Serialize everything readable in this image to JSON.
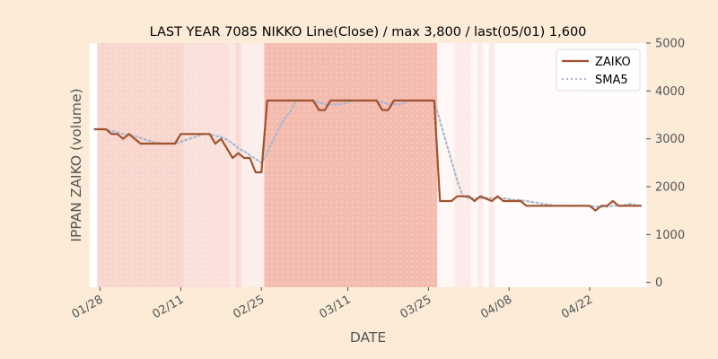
{
  "chart_data": {
    "type": "line",
    "title": "LAST YEAR 7085 NIKKO Line(Close) / max 3,800 / last(05/01) 1,600",
    "xlabel": "DATE",
    "ylabel": "IPPAN ZAIKO (volume)",
    "ylim": [
      -100,
      5000
    ],
    "y_ticks": [
      0,
      1000,
      2000,
      3000,
      4000,
      5000
    ],
    "y_axis_position": "right",
    "x_ticks": [
      "01/28",
      "02/11",
      "02/25",
      "03/11",
      "03/25",
      "04/08",
      "04/22"
    ],
    "grid": false,
    "legend_position": "top-right",
    "x": [
      "01/27",
      "01/28",
      "01/29",
      "01/30",
      "01/31",
      "02/01",
      "02/02",
      "02/03",
      "02/04",
      "02/05",
      "02/06",
      "02/07",
      "02/08",
      "02/09",
      "02/10",
      "02/11",
      "02/12",
      "02/13",
      "02/14",
      "02/15",
      "02/16",
      "02/17",
      "02/18",
      "02/19",
      "02/20",
      "02/21",
      "02/22",
      "02/23",
      "02/24",
      "02/25",
      "02/26",
      "02/27",
      "02/28",
      "02/29",
      "03/01",
      "03/02",
      "03/03",
      "03/04",
      "03/05",
      "03/06",
      "03/07",
      "03/08",
      "03/09",
      "03/10",
      "03/11",
      "03/12",
      "03/13",
      "03/14",
      "03/15",
      "03/16",
      "03/17",
      "03/18",
      "03/19",
      "03/20",
      "03/21",
      "03/22",
      "03/23",
      "03/24",
      "03/25",
      "03/26",
      "03/27",
      "03/28",
      "03/29",
      "03/30",
      "03/31",
      "04/01",
      "04/02",
      "04/03",
      "04/04",
      "04/05",
      "04/06",
      "04/07",
      "04/08",
      "04/09",
      "04/10",
      "04/11",
      "04/12",
      "04/13",
      "04/14",
      "04/15",
      "04/16",
      "04/17",
      "04/18",
      "04/19",
      "04/20",
      "04/21",
      "04/22",
      "04/23",
      "04/24",
      "04/25",
      "04/26",
      "04/27",
      "04/28",
      "04/29",
      "04/30",
      "05/01"
    ],
    "series": [
      {
        "name": "ZAIKO",
        "color": "#a0522d",
        "style": "solid",
        "values": [
          3200,
          3200,
          3200,
          3100,
          3100,
          3000,
          3100,
          3000,
          2900,
          2900,
          2900,
          2900,
          2900,
          2900,
          2900,
          3100,
          3100,
          3100,
          3100,
          3100,
          3100,
          2900,
          3000,
          2800,
          2600,
          2700,
          2600,
          2600,
          2300,
          2300,
          3800,
          3800,
          3800,
          3800,
          3800,
          3800,
          3800,
          3800,
          3800,
          3600,
          3600,
          3800,
          3800,
          3800,
          3800,
          3800,
          3800,
          3800,
          3800,
          3800,
          3600,
          3600,
          3800,
          3800,
          3800,
          3800,
          3800,
          3800,
          3800,
          3800,
          1700,
          1700,
          1700,
          1800,
          1800,
          1800,
          1700,
          1800,
          1750,
          1700,
          1800,
          1700,
          1700,
          1700,
          1700,
          1600,
          1600,
          1600,
          1600,
          1600,
          1600,
          1600,
          1600,
          1600,
          1600,
          1600,
          1600,
          1500,
          1600,
          1600,
          1700,
          1600,
          1600,
          1600,
          1600,
          1600
        ]
      },
      {
        "name": "SMA5",
        "color": "#a9b8cf",
        "style": "dotted",
        "values": [
          3200,
          3200,
          3200,
          3160,
          3140,
          3100,
          3080,
          3060,
          3020,
          2980,
          2940,
          2920,
          2900,
          2900,
          2900,
          2940,
          2980,
          3020,
          3060,
          3100,
          3100,
          3060,
          3040,
          2980,
          2900,
          2800,
          2740,
          2660,
          2580,
          2500,
          2720,
          2960,
          3200,
          3420,
          3560,
          3800,
          3800,
          3800,
          3800,
          3760,
          3720,
          3720,
          3720,
          3720,
          3760,
          3800,
          3800,
          3800,
          3800,
          3800,
          3760,
          3720,
          3720,
          3720,
          3760,
          3800,
          3800,
          3800,
          3800,
          3800,
          3380,
          2960,
          2540,
          2120,
          1800,
          1760,
          1760,
          1760,
          1760,
          1760,
          1760,
          1760,
          1740,
          1720,
          1720,
          1700,
          1680,
          1660,
          1640,
          1620,
          1600,
          1600,
          1600,
          1600,
          1600,
          1600,
          1600,
          1580,
          1580,
          1580,
          1600,
          1600,
          1620,
          1640,
          1620,
          1600
        ]
      }
    ],
    "background_bands": [
      {
        "start": "01/28",
        "end": "02/12",
        "color": "#f3b4a6",
        "opacity": 0.55
      },
      {
        "start": "02/12",
        "end": "02/20",
        "color": "#f3b4a6",
        "opacity": 0.42
      },
      {
        "start": "02/20",
        "end": "02/21",
        "color": "#f3b4a6",
        "opacity": 0.3
      },
      {
        "start": "02/21",
        "end": "02/22",
        "color": "#f3b4a6",
        "opacity": 0.5
      },
      {
        "start": "02/22",
        "end": "02/26",
        "color": "#f3b4a6",
        "opacity": 0.22
      },
      {
        "start": "02/26",
        "end": "03/27",
        "color": "#f3b4a6",
        "opacity": 0.9
      },
      {
        "start": "03/27",
        "end": "03/30",
        "color": "#f3b4a6",
        "opacity": 0.1
      },
      {
        "start": "03/30",
        "end": "04/02",
        "color": "#f3b4a6",
        "opacity": 0.25
      },
      {
        "start": "04/02",
        "end": "04/03",
        "color": "#f3b4a6",
        "opacity": 0.08
      },
      {
        "start": "04/03",
        "end": "04/04",
        "color": "#f3b4a6",
        "opacity": 0.25
      },
      {
        "start": "04/04",
        "end": "04/05",
        "color": "#f3b4a6",
        "opacity": 0.06
      },
      {
        "start": "04/05",
        "end": "04/06",
        "color": "#f3b4a6",
        "opacity": 0.28
      },
      {
        "start": "04/06",
        "end": "05/01",
        "color": "#f3b4a6",
        "opacity": 0.05
      }
    ]
  }
}
